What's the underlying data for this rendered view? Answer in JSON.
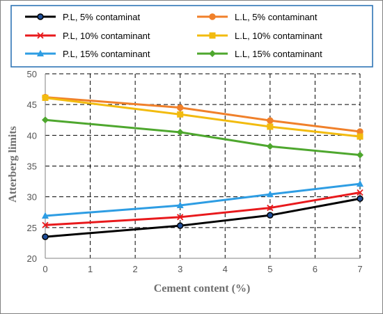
{
  "chart_data": {
    "type": "line",
    "title": "",
    "xlabel": "Cement content (%)",
    "ylabel": "Atterberg limits",
    "xlim": [
      0,
      7
    ],
    "ylim": [
      20,
      50
    ],
    "x_ticks": [
      0,
      1,
      2,
      3,
      4,
      5,
      6,
      7
    ],
    "y_ticks": [
      20,
      25,
      30,
      35,
      40,
      45,
      50
    ],
    "grid": true,
    "grid_style": "dashed",
    "legend_position": "top",
    "x": [
      0,
      3,
      5,
      7
    ],
    "series": [
      {
        "name": "P.L, 5% contaminat",
        "values": [
          23.5,
          25.3,
          27.0,
          29.7
        ],
        "color": "#000000",
        "marker": "circle",
        "marker_fill": "#1f4e99"
      },
      {
        "name": "L.L, 5% contaminant",
        "values": [
          46.2,
          44.5,
          42.4,
          40.6
        ],
        "color": "#f0802a",
        "marker": "circle",
        "marker_fill": "#f0802a"
      },
      {
        "name": "P.L, 10% contaminant",
        "values": [
          25.4,
          26.7,
          28.2,
          30.7
        ],
        "color": "#e8191c",
        "marker": "x",
        "marker_fill": "#e8191c"
      },
      {
        "name": "L.L, 10% contaminant",
        "values": [
          46.1,
          43.4,
          41.4,
          39.8
        ],
        "color": "#f2bb0f",
        "marker": "square",
        "marker_fill": "#f2bb0f"
      },
      {
        "name": "P.L, 15% contaminant",
        "values": [
          26.9,
          28.6,
          30.4,
          32.1
        ],
        "color": "#2e9de3",
        "marker": "triangle",
        "marker_fill": "#2e9de3"
      },
      {
        "name": "L.L, 15% contaminant",
        "values": [
          42.5,
          40.5,
          38.2,
          36.8
        ],
        "color": "#4ea72e",
        "marker": "diamond",
        "marker_fill": "#4ea72e"
      }
    ]
  }
}
